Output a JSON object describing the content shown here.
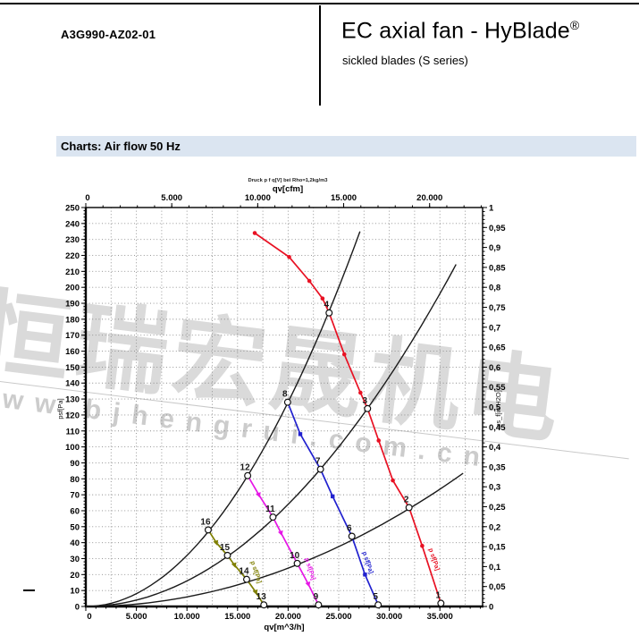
{
  "page": {
    "model": "A3G990-AZ02-01",
    "title": "EC axial fan - HyBlade",
    "title_sup": "®",
    "subtitle": "sickled blades (S series)",
    "section_header": "Charts: Air flow 50 Hz"
  },
  "watermark": {
    "cn_text": "恒瑞宏晟机电",
    "url_text": "www.bjhengrui.com.cn"
  },
  "chart_data": {
    "type": "line",
    "title": "Druck p f q[V] bei Rho=1,2kg/m3",
    "grid": true,
    "bottom_axis": {
      "label": "qv[m^3/h]",
      "min": 0,
      "max": 39222,
      "tick_values": [
        0,
        5000,
        10000,
        15000,
        20000,
        25000,
        30000,
        35000
      ],
      "tick_labels": [
        "0",
        "5.000",
        "10.000",
        "15.000",
        "20.000",
        "25.000",
        "30.000",
        "35.000"
      ],
      "minor_step": 1000,
      "grid_step": 2500
    },
    "top_axis": {
      "label": "qv[cfm]",
      "min": 0,
      "max": 23082,
      "tick_values": [
        0,
        5000,
        10000,
        15000,
        20000
      ],
      "tick_labels": [
        "0",
        "5.000",
        "10.000",
        "15.000",
        "20.000"
      ],
      "minor_step": 1000
    },
    "left_axis": {
      "label": "psf[Pa]",
      "min": 0,
      "max": 250,
      "step": 10,
      "minor_step": 2,
      "tick_labels": [
        "0",
        "10",
        "20",
        "30",
        "40",
        "50",
        "60",
        "70",
        "80",
        "90",
        "100",
        "110",
        "120",
        "130",
        "140",
        "150",
        "160",
        "170",
        "180",
        "190",
        "200",
        "210",
        "220",
        "230",
        "240",
        "250"
      ]
    },
    "right_axis": {
      "label": "ps_f[in H2O]",
      "min": 0,
      "max": 1,
      "step": 0.05,
      "minor_step": 0.01,
      "tick_labels": [
        "0",
        "0,05",
        "0,1",
        "0,15",
        "0,2",
        "0,25",
        "0,3",
        "0,35",
        "0,4",
        "0,45",
        "0,5",
        "0,55",
        "0,6",
        "0,65",
        "0,7",
        "0,75",
        "0,8",
        "0,85",
        "0,9",
        "0,95",
        "1"
      ]
    },
    "curve_tag": "p sf[Pa]",
    "series": [
      {
        "name": "speed-curve-1-max",
        "color": "#e81123",
        "marker": "dot",
        "points": [
          [
            16700,
            234
          ],
          [
            20100,
            219
          ],
          [
            22100,
            204
          ],
          [
            23400,
            193
          ],
          [
            24050,
            184
          ],
          [
            25550,
            158
          ],
          [
            27150,
            134
          ],
          [
            27850,
            124
          ],
          [
            28950,
            104
          ],
          [
            30350,
            79
          ],
          [
            31950,
            62
          ],
          [
            33250,
            38
          ],
          [
            35100,
            2
          ]
        ],
        "markers": [
          [
            16700,
            234
          ],
          [
            20100,
            219
          ],
          [
            22100,
            204
          ],
          [
            23400,
            193
          ],
          [
            25550,
            158
          ],
          [
            27150,
            134
          ],
          [
            28950,
            104
          ],
          [
            30350,
            79
          ],
          [
            33250,
            38
          ]
        ],
        "labeled_points": [
          {
            "label": "4",
            "x": 24050,
            "y": 184
          },
          {
            "label": "3",
            "x": 27850,
            "y": 124
          },
          {
            "label": "2",
            "x": 31950,
            "y": 62
          },
          {
            "label": "1",
            "x": 35100,
            "y": 2
          }
        ],
        "tag_pos": {
          "x": 33900,
          "y": 36
        }
      },
      {
        "name": "speed-curve-2",
        "color": "#2121cf",
        "marker": "square",
        "points": [
          [
            19950,
            128
          ],
          [
            21200,
            108
          ],
          [
            23200,
            86
          ],
          [
            24400,
            69
          ],
          [
            26300,
            44
          ],
          [
            27600,
            20
          ],
          [
            28900,
            1
          ]
        ],
        "markers": [
          [
            21200,
            108
          ],
          [
            24400,
            69
          ],
          [
            27600,
            20
          ]
        ],
        "labeled_points": [
          {
            "label": "8",
            "x": 19950,
            "y": 128
          },
          {
            "label": "7",
            "x": 23200,
            "y": 86
          },
          {
            "label": "6",
            "x": 26300,
            "y": 44
          },
          {
            "label": "5",
            "x": 28900,
            "y": 1
          }
        ],
        "tag_pos": {
          "x": 27350,
          "y": 34
        }
      },
      {
        "name": "speed-curve-3",
        "color": "#e616e6",
        "marker": "arrow",
        "points": [
          [
            16000,
            82
          ],
          [
            17100,
            70
          ],
          [
            18500,
            56
          ],
          [
            19300,
            46
          ],
          [
            20900,
            27
          ],
          [
            22000,
            14
          ],
          [
            23000,
            1
          ]
        ],
        "markers": [
          [
            17100,
            70
          ],
          [
            19300,
            46
          ],
          [
            22000,
            14
          ]
        ],
        "labeled_points": [
          {
            "label": "12",
            "x": 16000,
            "y": 82
          },
          {
            "label": "11",
            "x": 18500,
            "y": 56
          },
          {
            "label": "10",
            "x": 20900,
            "y": 27
          },
          {
            "label": "9",
            "x": 23000,
            "y": 1
          }
        ],
        "tag_pos": {
          "x": 21650,
          "y": 30
        }
      },
      {
        "name": "speed-curve-4",
        "color": "#7f7f00",
        "marker": "arrow",
        "points": [
          [
            12100,
            48
          ],
          [
            12900,
            40
          ],
          [
            14000,
            32
          ],
          [
            14700,
            26
          ],
          [
            15900,
            17
          ],
          [
            16800,
            9
          ],
          [
            17600,
            1
          ]
        ],
        "markers": [
          [
            12900,
            40
          ],
          [
            14700,
            26
          ],
          [
            16800,
            9
          ]
        ],
        "labeled_points": [
          {
            "label": "16",
            "x": 12100,
            "y": 48
          },
          {
            "label": "15",
            "x": 14000,
            "y": 32
          },
          {
            "label": "14",
            "x": 15900,
            "y": 17
          },
          {
            "label": "13",
            "x": 17600,
            "y": 1
          }
        ],
        "tag_pos": {
          "x": 16300,
          "y": 28
        }
      }
    ],
    "system_curves": [
      {
        "name": "system-resistance-A",
        "k": 3.2e-07,
        "x_end": 27100
      },
      {
        "name": "system-resistance-B",
        "k": 1.6e-07,
        "x_end": 36600
      },
      {
        "name": "system-resistance-C",
        "k": 6e-08,
        "x_end": 37300
      }
    ],
    "system_curve_color": "#1a1a1a"
  }
}
